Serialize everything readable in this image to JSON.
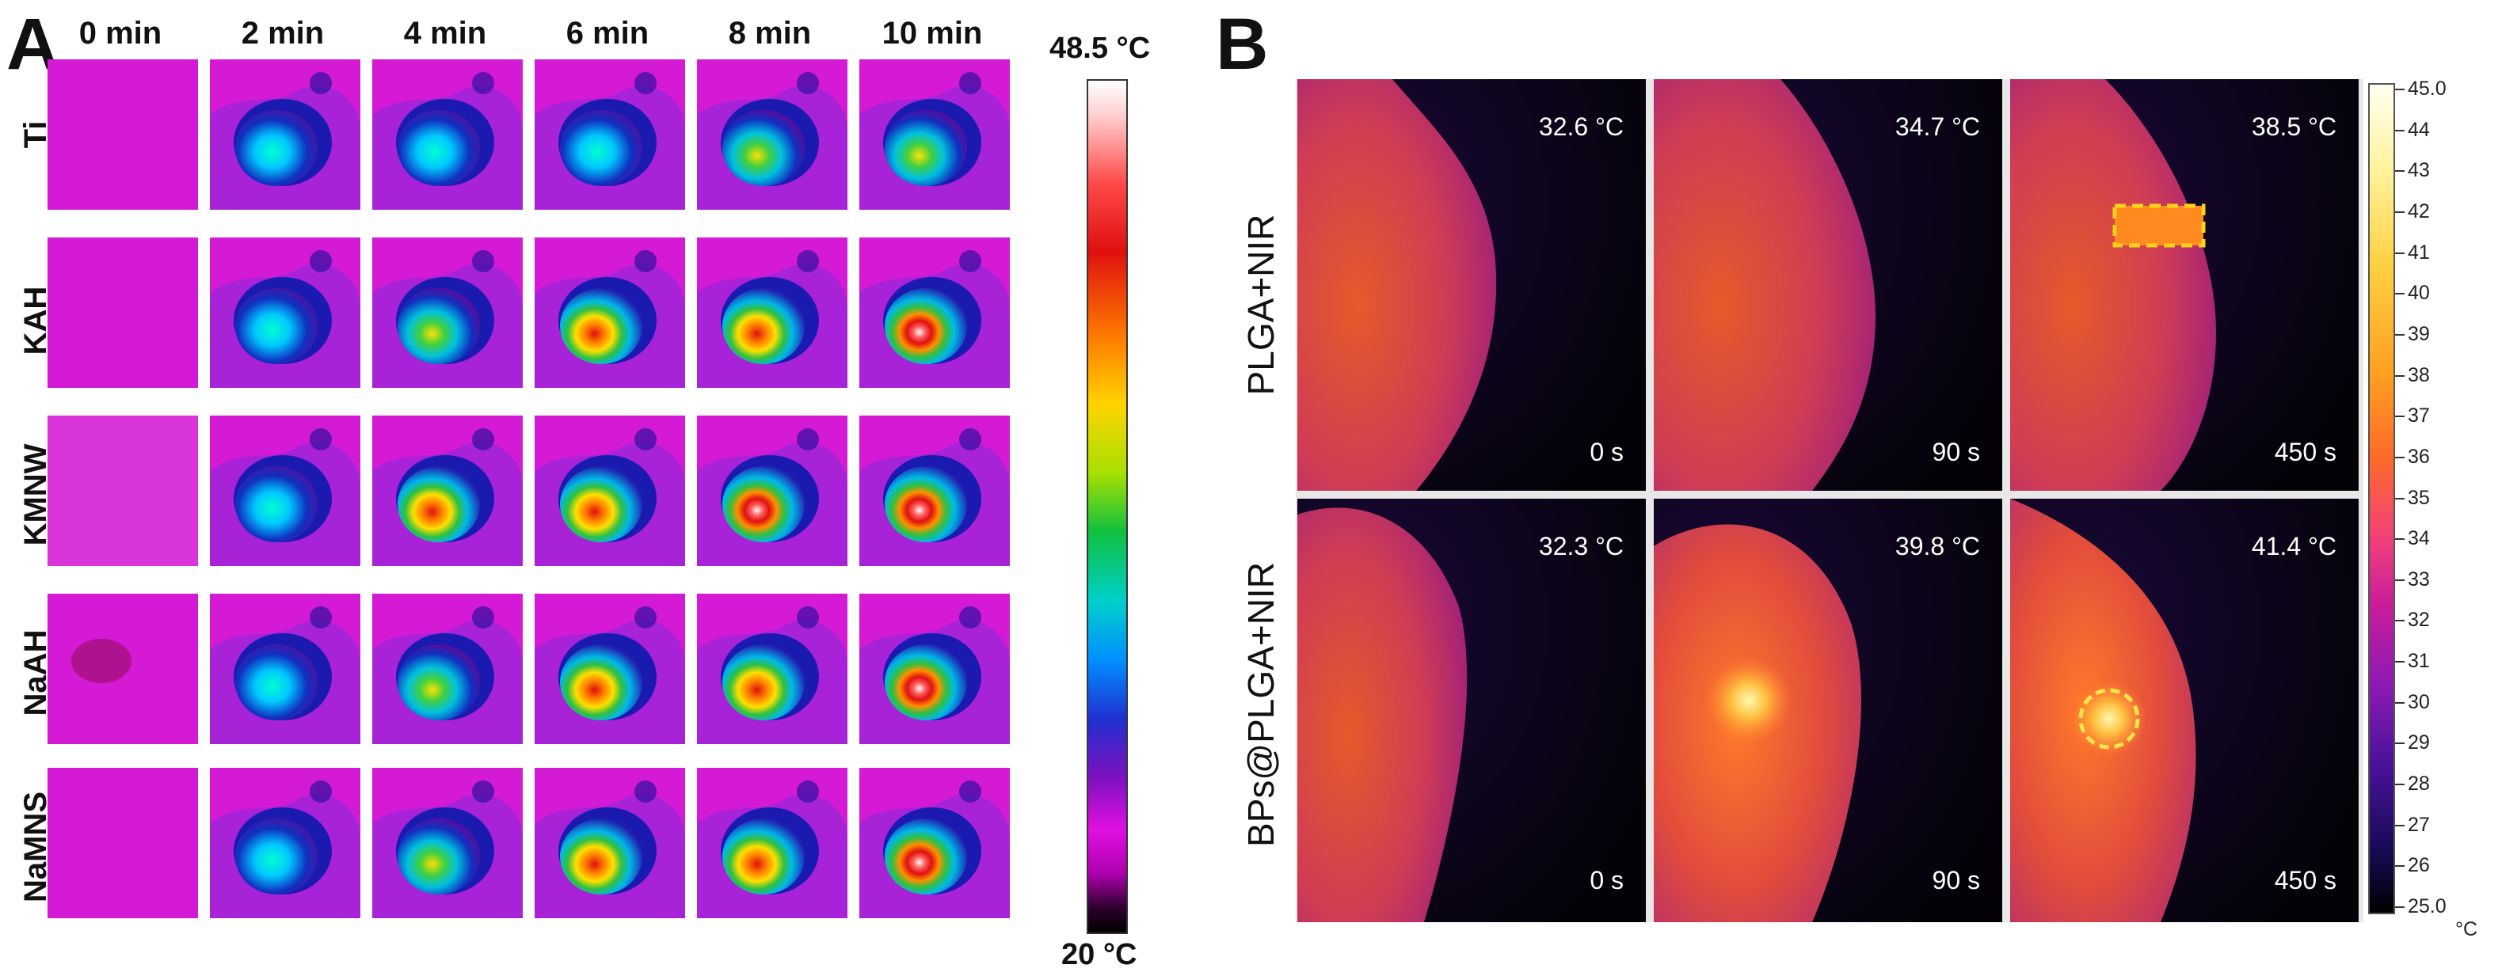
{
  "panel_a": {
    "letter": "A",
    "columns": [
      "0 min",
      "2 min",
      "4 min",
      "6 min",
      "8 min",
      "10 min"
    ],
    "rows": [
      "Ti",
      "KAH",
      "KMNW",
      "NaAH",
      "NaMNS"
    ],
    "colorbar": {
      "max_label": "48.5 °C",
      "min_label": "20 °C"
    }
  },
  "panel_b": {
    "letter": "B",
    "rows": [
      {
        "label": "PLGA+NIR",
        "temps": [
          "32.6 °C",
          "34.7 °C",
          "38.5 °C"
        ]
      },
      {
        "label": "BPs@PLGA+NIR",
        "temps": [
          "32.3 °C",
          "39.8 °C",
          "41.4 °C"
        ]
      }
    ],
    "times": [
      "0 s",
      "90 s",
      "450 s"
    ],
    "colorbar": {
      "ticks": [
        "45.0",
        "44",
        "43",
        "42",
        "41",
        "40",
        "39",
        "38",
        "37",
        "36",
        "35",
        "34",
        "33",
        "32",
        "31",
        "30",
        "29",
        "28",
        "27",
        "26",
        "25.0"
      ],
      "unit": "°C"
    }
  },
  "colors": {
    "magenta_bg": "#d41ad4",
    "black_bg": "#050505"
  }
}
